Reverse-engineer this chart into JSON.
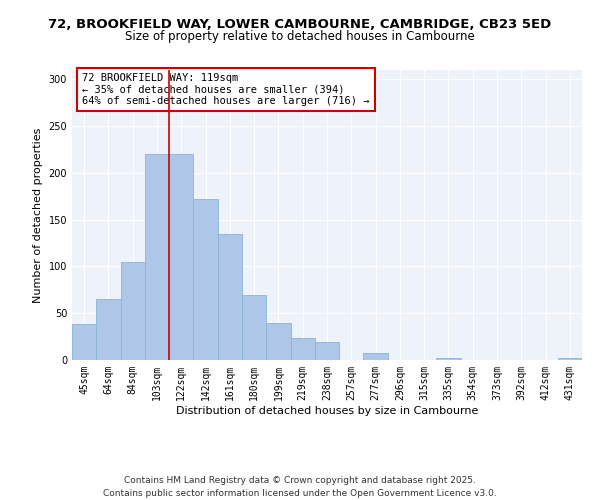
{
  "title": "72, BROOKFIELD WAY, LOWER CAMBOURNE, CAMBRIDGE, CB23 5ED",
  "subtitle": "Size of property relative to detached houses in Cambourne",
  "xlabel": "Distribution of detached houses by size in Cambourne",
  "ylabel": "Number of detached properties",
  "categories": [
    "45sqm",
    "64sqm",
    "84sqm",
    "103sqm",
    "122sqm",
    "142sqm",
    "161sqm",
    "180sqm",
    "199sqm",
    "219sqm",
    "238sqm",
    "257sqm",
    "277sqm",
    "296sqm",
    "315sqm",
    "335sqm",
    "354sqm",
    "373sqm",
    "392sqm",
    "412sqm",
    "431sqm"
  ],
  "values": [
    39,
    65,
    105,
    220,
    220,
    172,
    135,
    70,
    40,
    24,
    19,
    0,
    7,
    0,
    0,
    2,
    0,
    0,
    0,
    0,
    2
  ],
  "bar_color": "#aec6e8",
  "bar_edge_color": "#8ab4d8",
  "vline_x_index": 4,
  "vline_color": "#cc0000",
  "annotation_box_text": "72 BROOKFIELD WAY: 119sqm\n← 35% of detached houses are smaller (394)\n64% of semi-detached houses are larger (716) →",
  "annotation_box_facecolor": "white",
  "annotation_box_edgecolor": "#cc0000",
  "ylim": [
    0,
    310
  ],
  "yticks": [
    0,
    50,
    100,
    150,
    200,
    250,
    300
  ],
  "footer_line1": "Contains HM Land Registry data © Crown copyright and database right 2025.",
  "footer_line2": "Contains public sector information licensed under the Open Government Licence v3.0.",
  "background_color": "#eef2fb",
  "title_fontsize": 9.5,
  "subtitle_fontsize": 8.5,
  "axis_label_fontsize": 8,
  "tick_fontsize": 7,
  "annotation_fontsize": 7.5,
  "footer_fontsize": 6.5
}
